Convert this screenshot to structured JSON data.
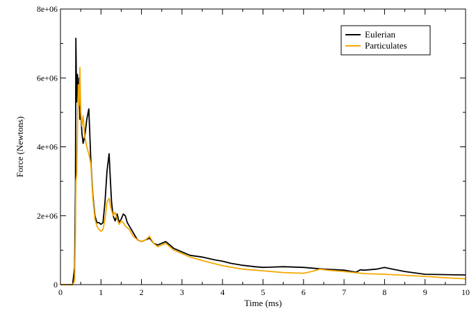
{
  "chart_data": {
    "type": "line",
    "title": "",
    "xlabel": "Time (ms)",
    "ylabel": "Force (Newtons)",
    "xlim": [
      0,
      10
    ],
    "ylim": [
      0,
      8000000
    ],
    "x_ticks": [
      0,
      1,
      2,
      3,
      4,
      5,
      6,
      7,
      8,
      9,
      10
    ],
    "x_tick_labels": [
      "0",
      "1",
      "2",
      "3",
      "4",
      "5",
      "6",
      "7",
      "8",
      "9",
      "10"
    ],
    "y_ticks": [
      0,
      2000000,
      4000000,
      6000000,
      8000000
    ],
    "y_tick_labels": [
      "0",
      "2e+06",
      "4e+06",
      "6e+06",
      "8e+06"
    ],
    "grid": false,
    "legend_position": "top-right",
    "series": [
      {
        "name": "Eulerian",
        "color": "#000000",
        "x": [
          0,
          0.3,
          0.35,
          0.37,
          0.38,
          0.4,
          0.42,
          0.44,
          0.46,
          0.48,
          0.5,
          0.53,
          0.56,
          0.6,
          0.65,
          0.7,
          0.72,
          0.75,
          0.8,
          0.85,
          0.9,
          0.95,
          1.0,
          1.05,
          1.1,
          1.15,
          1.2,
          1.23,
          1.26,
          1.3,
          1.35,
          1.4,
          1.45,
          1.5,
          1.55,
          1.6,
          1.65,
          1.7,
          1.8,
          1.9,
          2.0,
          2.1,
          2.2,
          2.3,
          2.4,
          2.5,
          2.6,
          2.7,
          2.8,
          3.0,
          3.2,
          3.5,
          3.8,
          4.0,
          4.2,
          4.5,
          4.8,
          5.0,
          5.5,
          6.0,
          6.5,
          7.0,
          7.3,
          7.4,
          7.5,
          7.8,
          8.0,
          8.2,
          8.5,
          9.0,
          9.5,
          10.0
        ],
        "values": [
          0,
          0,
          500000,
          2800000,
          7150000,
          5300000,
          6100000,
          5200000,
          6000000,
          4800000,
          5000000,
          4400000,
          4100000,
          4300000,
          4800000,
          5100000,
          4500000,
          3600000,
          2600000,
          2000000,
          1800000,
          1800000,
          1750000,
          1800000,
          2400000,
          3300000,
          3800000,
          3100000,
          2400000,
          2000000,
          1850000,
          2050000,
          1800000,
          1900000,
          2050000,
          2000000,
          1800000,
          1700000,
          1500000,
          1300000,
          1250000,
          1300000,
          1350000,
          1200000,
          1150000,
          1200000,
          1250000,
          1150000,
          1050000,
          950000,
          850000,
          800000,
          720000,
          680000,
          620000,
          560000,
          520000,
          500000,
          520000,
          500000,
          450000,
          420000,
          360000,
          430000,
          420000,
          450000,
          500000,
          450000,
          380000,
          300000,
          290000,
          280000
        ]
      },
      {
        "name": "Particulates",
        "color": "#f5a800",
        "x": [
          0,
          0.3,
          0.35,
          0.37,
          0.38,
          0.4,
          0.42,
          0.44,
          0.46,
          0.48,
          0.5,
          0.53,
          0.56,
          0.6,
          0.65,
          0.7,
          0.75,
          0.8,
          0.85,
          0.9,
          0.95,
          1.0,
          1.05,
          1.1,
          1.15,
          1.2,
          1.25,
          1.3,
          1.35,
          1.4,
          1.45,
          1.5,
          1.55,
          1.6,
          1.7,
          1.8,
          1.9,
          2.0,
          2.1,
          2.2,
          2.3,
          2.4,
          2.5,
          2.6,
          2.7,
          2.8,
          3.0,
          3.2,
          3.5,
          4.0,
          4.5,
          5.0,
          5.5,
          6.0,
          6.2,
          6.4,
          6.6,
          7.0,
          7.5,
          8.0,
          8.5,
          9.0,
          9.5,
          10.0
        ],
        "values": [
          0,
          0,
          100000,
          1500000,
          3000000,
          3200000,
          4500000,
          5800000,
          5200000,
          6300000,
          5000000,
          4600000,
          4900000,
          4300000,
          4000000,
          3800000,
          3500000,
          2500000,
          1900000,
          1700000,
          1600000,
          1550000,
          1600000,
          1900000,
          2400000,
          2500000,
          2200000,
          2000000,
          2100000,
          1900000,
          1750000,
          1850000,
          1800000,
          1700000,
          1600000,
          1400000,
          1300000,
          1250000,
          1300000,
          1400000,
          1200000,
          1100000,
          1150000,
          1200000,
          1100000,
          1000000,
          900000,
          800000,
          700000,
          550000,
          450000,
          400000,
          350000,
          330000,
          380000,
          450000,
          420000,
          380000,
          320000,
          300000,
          270000,
          240000,
          200000,
          170000
        ]
      }
    ]
  }
}
